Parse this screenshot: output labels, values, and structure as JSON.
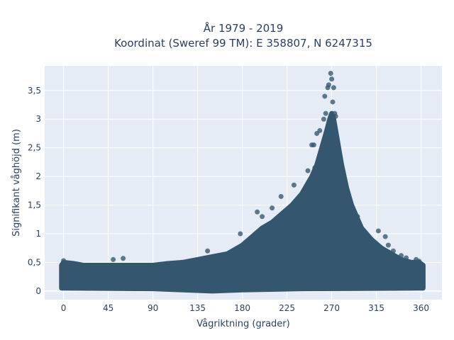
{
  "chart_data": {
    "type": "scatter",
    "title": "År 1979 - 2019",
    "subtitle": "Koordinat (Sweref 99 TM): E 358807, N 6247315",
    "xlabel": "Vågriktning (grader)",
    "ylabel": "Signifikant våghöjd (m)",
    "xlim": [
      -19,
      381
    ],
    "ylim": [
      -0.15,
      3.93
    ],
    "x_ticks": [
      0,
      45,
      90,
      135,
      180,
      225,
      270,
      315,
      360
    ],
    "x_tick_labels": [
      "0",
      "45",
      "90",
      "135",
      "180",
      "225",
      "270",
      "315",
      "360"
    ],
    "y_ticks": [
      0,
      0.5,
      1,
      1.5,
      2,
      2.5,
      3,
      3.5
    ],
    "y_tick_labels": [
      "0",
      "0,5",
      "1",
      "1,5",
      "2",
      "2,5",
      "3",
      "3,5"
    ],
    "grid": true,
    "colors": {
      "marker": "#34566e",
      "plot_background": "#e5ecf6",
      "grid": "#ffffff",
      "text": "#2a3f5f"
    },
    "upper_envelope": {
      "x": [
        -2,
        0,
        10,
        20,
        30,
        45,
        60,
        75,
        90,
        105,
        120,
        135,
        150,
        165,
        180,
        190,
        200,
        210,
        220,
        230,
        240,
        250,
        255,
        260,
        265,
        268,
        270,
        272,
        275,
        280,
        285,
        290,
        295,
        300,
        310,
        320,
        330,
        340,
        350,
        358,
        362
      ],
      "y": [
        0.45,
        0.5,
        0.48,
        0.45,
        0.45,
        0.45,
        0.45,
        0.45,
        0.45,
        0.48,
        0.5,
        0.55,
        0.6,
        0.65,
        0.8,
        0.95,
        1.1,
        1.2,
        1.35,
        1.5,
        1.7,
        2.0,
        2.2,
        2.5,
        2.8,
        3.0,
        3.1,
        3.0,
        2.7,
        2.2,
        1.8,
        1.5,
        1.3,
        1.1,
        0.9,
        0.75,
        0.65,
        0.55,
        0.5,
        0.5,
        0.45
      ]
    },
    "lower_envelope": {
      "x": [
        -2,
        90,
        150,
        180,
        240,
        360,
        362
      ],
      "y": [
        0.05,
        0.04,
        0.0,
        0.02,
        0.04,
        0.05,
        0.05
      ]
    },
    "points": [
      {
        "x": 0,
        "y": 0.53
      },
      {
        "x": 50,
        "y": 0.55
      },
      {
        "x": 60,
        "y": 0.57
      },
      {
        "x": 145,
        "y": 0.7
      },
      {
        "x": 178,
        "y": 1.0
      },
      {
        "x": 195,
        "y": 1.38
      },
      {
        "x": 200,
        "y": 1.3
      },
      {
        "x": 210,
        "y": 1.45
      },
      {
        "x": 219,
        "y": 1.65
      },
      {
        "x": 232,
        "y": 1.85
      },
      {
        "x": 246,
        "y": 2.1
      },
      {
        "x": 253,
        "y": 2.15
      },
      {
        "x": 250,
        "y": 2.55
      },
      {
        "x": 252,
        "y": 2.55
      },
      {
        "x": 257,
        "y": 2.3
      },
      {
        "x": 255,
        "y": 2.75
      },
      {
        "x": 258,
        "y": 2.8
      },
      {
        "x": 262,
        "y": 3.0
      },
      {
        "x": 263,
        "y": 3.4
      },
      {
        "x": 264,
        "y": 3.1
      },
      {
        "x": 266,
        "y": 3.55
      },
      {
        "x": 267,
        "y": 3.6
      },
      {
        "x": 269,
        "y": 3.8
      },
      {
        "x": 270,
        "y": 3.7
      },
      {
        "x": 272,
        "y": 3.55
      },
      {
        "x": 271,
        "y": 3.3
      },
      {
        "x": 273,
        "y": 3.1
      },
      {
        "x": 274,
        "y": 3.05
      },
      {
        "x": 276,
        "y": 2.4
      },
      {
        "x": 280,
        "y": 2.05
      },
      {
        "x": 283,
        "y": 1.8
      },
      {
        "x": 286,
        "y": 1.6
      },
      {
        "x": 290,
        "y": 1.5
      },
      {
        "x": 296,
        "y": 1.3
      },
      {
        "x": 300,
        "y": 1.05
      },
      {
        "x": 306,
        "y": 0.95
      },
      {
        "x": 310,
        "y": 0.9
      },
      {
        "x": 317,
        "y": 1.05
      },
      {
        "x": 324,
        "y": 0.95
      },
      {
        "x": 327,
        "y": 0.8
      },
      {
        "x": 332,
        "y": 0.7
      },
      {
        "x": 340,
        "y": 0.62
      },
      {
        "x": 345,
        "y": 0.58
      },
      {
        "x": 355,
        "y": 0.55
      },
      {
        "x": 358,
        "y": 0.52
      }
    ]
  }
}
